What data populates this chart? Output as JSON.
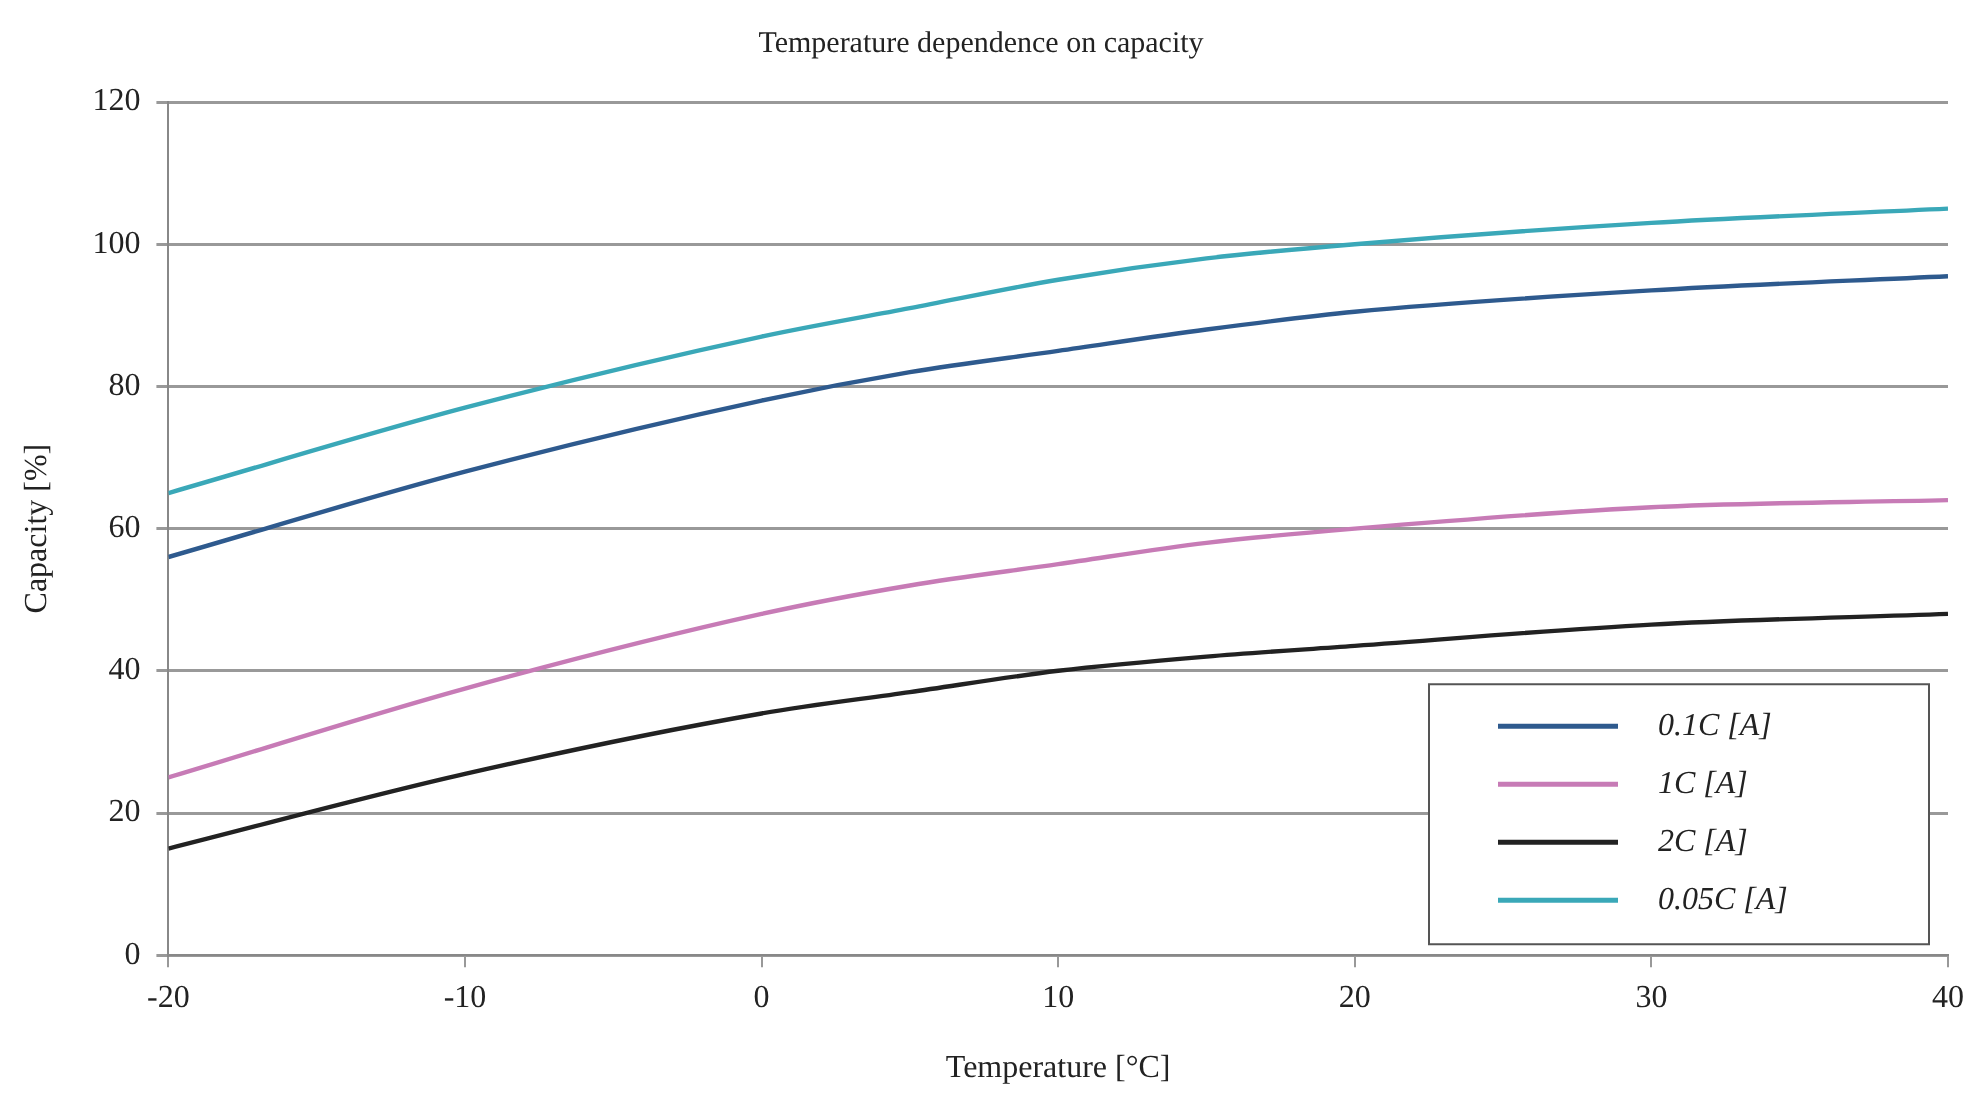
{
  "chart_data": {
    "type": "line",
    "title": "Temperature dependence on capacity",
    "xlabel": "Temperature [°C]",
    "ylabel": "Capacity [%]",
    "x": [
      -20,
      -10,
      0,
      5,
      10,
      15,
      20,
      30,
      40
    ],
    "series": [
      {
        "name": "0.1C [A]",
        "color": "#2e5a8e",
        "values": [
          56,
          68,
          78,
          82,
          85,
          88,
          90.5,
          93.5,
          95.5
        ]
      },
      {
        "name": "1C [A]",
        "color": "#c77bb6",
        "values": [
          25,
          37.5,
          48,
          52,
          55,
          58,
          60,
          63,
          64
        ]
      },
      {
        "name": "2C [A]",
        "color": "#222222",
        "values": [
          15,
          25.5,
          34,
          37,
          40,
          42,
          43.5,
          46.5,
          48
        ]
      },
      {
        "name": "0.05C [A]",
        "color": "#3aa8b8",
        "values": [
          65,
          77,
          87,
          91,
          95,
          98,
          100,
          103,
          105
        ]
      }
    ],
    "xlim": [
      -20,
      40
    ],
    "xticks": [
      -20,
      -10,
      0,
      10,
      20,
      30,
      40
    ],
    "ylim": [
      0,
      120
    ],
    "yticks": [
      0,
      20,
      40,
      60,
      80,
      100,
      120
    ],
    "grid": "y",
    "legend": "bottom right",
    "marker": "none",
    "line_style": "solid"
  }
}
